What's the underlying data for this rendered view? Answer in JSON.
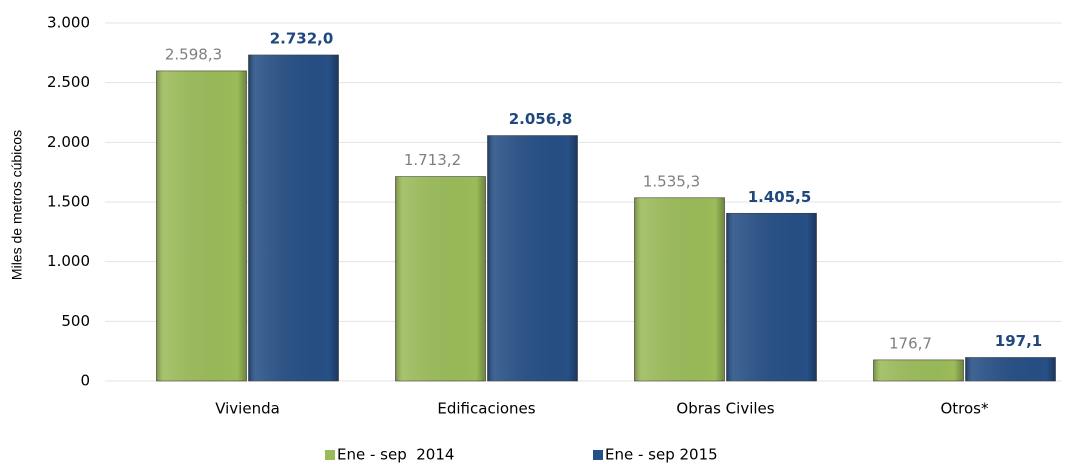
{
  "chart_data": {
    "type": "bar",
    "y_label": "Miles de metros cúbicos",
    "categories": [
      "Vivienda",
      "Edificaciones",
      "Obras Civiles",
      "Otros*"
    ],
    "series": [
      {
        "name": "Ene - sep  2014",
        "color": "#9bbb59",
        "label_color": "#7f7f7f",
        "values": [
          2598.3,
          1713.2,
          1535.3,
          176.7
        ],
        "value_labels": [
          "2.598,3",
          "1.713,2",
          "1.535,3",
          "176,7"
        ]
      },
      {
        "name": "Ene - sep 2015",
        "color": "#264f85",
        "label_color": "#1f497d",
        "values": [
          2732.0,
          2056.8,
          1405.5,
          197.1
        ],
        "value_labels": [
          "2.732,0",
          "2.056,8",
          "1.405,5",
          "197,1"
        ]
      }
    ],
    "ylim": [
      0,
      3000
    ],
    "yticks": [
      0,
      500,
      {
        "value": 1000,
        "label": "1.000"
      },
      {
        "value": 1500,
        "label": "1.500"
      },
      {
        "value": 2000,
        "label": "2.000"
      },
      {
        "value": 2500,
        "label": "2.500"
      },
      {
        "value": 3000,
        "label": "3.000"
      }
    ],
    "grid": true,
    "legend": "bottom"
  }
}
